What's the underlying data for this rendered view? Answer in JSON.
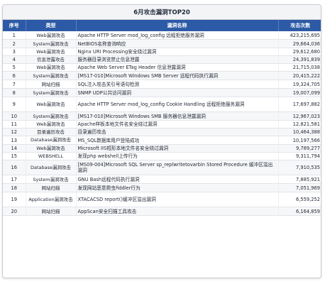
{
  "title": "6月攻击漏洞TOP20",
  "columns": {
    "index": "序号",
    "type": "类型",
    "name": "漏洞名称",
    "count": "攻击次数"
  },
  "rows": [
    {
      "index": "1",
      "type": "Web漏洞攻击",
      "name": "Apache HTTP Server mod_log_config 远程拒绝服务漏洞",
      "count": "423,215,695"
    },
    {
      "index": "2",
      "type": "System漏洞攻击",
      "name": "NetBIOS名称查询响应",
      "count": "29,664,036"
    },
    {
      "index": "3",
      "type": "Web漏洞攻击",
      "name": "Nginx URI Processing安全绕过漏洞",
      "count": "29,612,680"
    },
    {
      "index": "4",
      "type": "信息泄露攻击",
      "name": "服务器目录浏览禁止信息泄露",
      "count": "24,391,839"
    },
    {
      "index": "5",
      "type": "Web漏洞攻击",
      "name": "Apache Web Server ETag Header 信息泄露漏洞",
      "count": "21,715,038"
    },
    {
      "index": "6",
      "type": "System漏洞攻击",
      "name": "[MS17-010]Microsoft Windows SMB Server 远程代码执行漏洞",
      "count": "20,415,222"
    },
    {
      "index": "7",
      "type": "网站扫描",
      "name": "SQL注入攻击关引号语句检测",
      "count": "19,324,705"
    },
    {
      "index": "8",
      "type": "System漏洞攻击",
      "name": "SNMP UDP公共访问漏洞",
      "count": "19,007,099"
    },
    {
      "index": "9",
      "type": "Web漏洞攻击",
      "name": "Apache HTTP Server mod_log_config Cookie Handling 远程拒绝服务漏洞",
      "count": "17,697,882"
    },
    {
      "index": "10",
      "type": "System漏洞攻击",
      "name": "[MS17-010]Microsoft Windows SMB 服务器信息泄露漏洞",
      "count": "12,967,023"
    },
    {
      "index": "11",
      "type": "Web漏洞攻击",
      "name": "Apache样板本地文件名安全绕过漏洞",
      "count": "12,821,581"
    },
    {
      "index": "12",
      "type": "目录遍历攻击",
      "name": "目录遍历攻击",
      "count": "10,464,388"
    },
    {
      "index": "13",
      "type": "Database漏洞攻击",
      "name": "MS_SQL数据库用户登陆成功",
      "count": "10,197,566"
    },
    {
      "index": "14",
      "type": "Web漏洞攻击",
      "name": "Microsoft IIS短形本地文件名安全绕过漏洞",
      "count": "9,789,277"
    },
    {
      "index": "15",
      "type": "WEBSHELL",
      "name": "发现php webshell上传行为",
      "count": "9,311,794"
    },
    {
      "index": "16",
      "type": "Database漏洞攻击",
      "name": "[MS09-004]Microsoft SQL Server sp_replwritetovarbin Stored Procedure 缓冲区溢出漏洞",
      "count": "7,910,535"
    },
    {
      "index": "17",
      "type": "System漏洞攻击",
      "name": "GNU Bash远程代码执行漏洞",
      "count": "7,885,921"
    },
    {
      "index": "18",
      "type": "网站扫描",
      "name": "发现网站恶意爬虫fiddler行为",
      "count": "7,051,969"
    },
    {
      "index": "19",
      "type": "Application漏洞攻击",
      "name": "XTACACSD report()缓冲区溢出漏洞",
      "count": "6,559,252"
    },
    {
      "index": "20",
      "type": "网站扫描",
      "name": "AppScan安全扫描工具攻击",
      "count": "6,164,859"
    }
  ]
}
